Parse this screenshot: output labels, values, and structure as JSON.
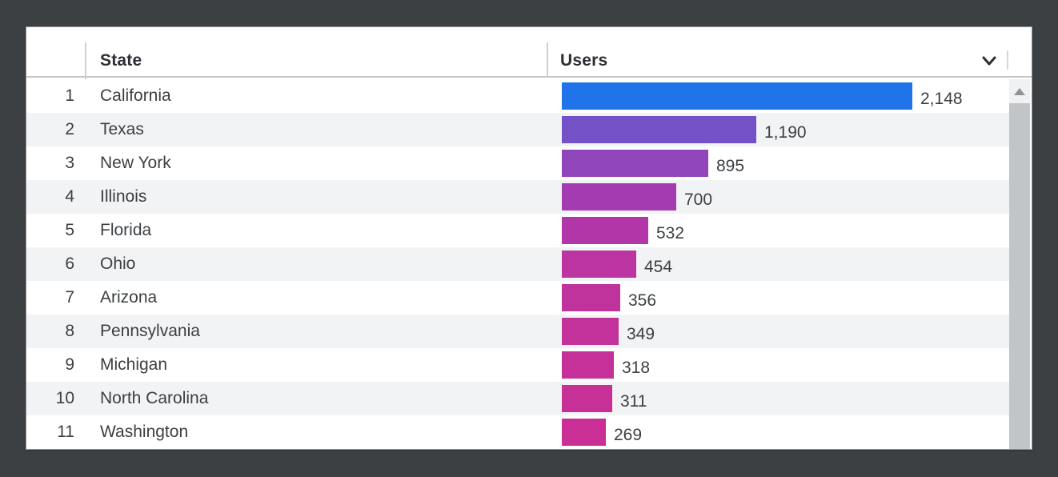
{
  "theme": {
    "page_background": "#3c4043",
    "card_background": "#ffffff",
    "zebra_row_background": "#f1f3f4",
    "body_text_color": "#3c4043",
    "header_text_color": "#2b2f33",
    "divider_color": "#ccd0d3",
    "scrollbar_track_color": "#f0f1f2",
    "scrollbar_thumb_color": "#c2c5c7"
  },
  "table": {
    "columns": [
      {
        "label": "State"
      },
      {
        "label": "Users"
      }
    ],
    "sort": {
      "column": "Users",
      "indicator_icon": "chevron-down-icon"
    },
    "rows": [
      {
        "rank": "1",
        "state": "California",
        "users": "2,148",
        "value": 2148,
        "bar_color": "#1e74e8"
      },
      {
        "rank": "2",
        "state": "Texas",
        "users": "1,190",
        "value": 1190,
        "bar_color": "#7451c7"
      },
      {
        "rank": "3",
        "state": "New York",
        "users": "895",
        "value": 895,
        "bar_color": "#9145ba"
      },
      {
        "rank": "4",
        "state": "Illinois",
        "users": "700",
        "value": 700,
        "bar_color": "#a43bb0"
      },
      {
        "rank": "5",
        "state": "Florida",
        "users": "532",
        "value": 532,
        "bar_color": "#b236a8"
      },
      {
        "rank": "6",
        "state": "Ohio",
        "users": "454",
        "value": 454,
        "bar_color": "#bb34a1"
      },
      {
        "rank": "7",
        "state": "Arizona",
        "users": "356",
        "value": 356,
        "bar_color": "#c0339d"
      },
      {
        "rank": "8",
        "state": "Pennsylvania",
        "users": "349",
        "value": 349,
        "bar_color": "#c3319a"
      },
      {
        "rank": "9",
        "state": "Michigan",
        "users": "318",
        "value": 318,
        "bar_color": "#c53199"
      },
      {
        "rank": "10",
        "state": "North Carolina",
        "users": "311",
        "value": 311,
        "bar_color": "#c73097"
      },
      {
        "rank": "11",
        "state": "Washington",
        "users": "269",
        "value": 269,
        "bar_color": "#ca2f95"
      }
    ]
  },
  "chart_data": {
    "type": "bar",
    "orientation": "horizontal",
    "categories": [
      "California",
      "Texas",
      "New York",
      "Illinois",
      "Florida",
      "Ohio",
      "Arizona",
      "Pennsylvania",
      "Michigan",
      "North Carolina",
      "Washington"
    ],
    "values": [
      2148,
      1190,
      895,
      700,
      532,
      454,
      356,
      349,
      318,
      311,
      269
    ],
    "value_labels": [
      "2,148",
      "1,190",
      "895",
      "700",
      "532",
      "454",
      "356",
      "349",
      "318",
      "311",
      "269"
    ],
    "bar_colors": [
      "#1e74e8",
      "#7451c7",
      "#9145ba",
      "#a43bb0",
      "#b236a8",
      "#bb34a1",
      "#c0339d",
      "#c3319a",
      "#c53199",
      "#c73097",
      "#ca2f95"
    ],
    "title": "",
    "xlabel": "Users",
    "ylabel": "State",
    "xlim": [
      0,
      2148
    ],
    "sort_order": "descending",
    "grid": false,
    "legend": false
  }
}
